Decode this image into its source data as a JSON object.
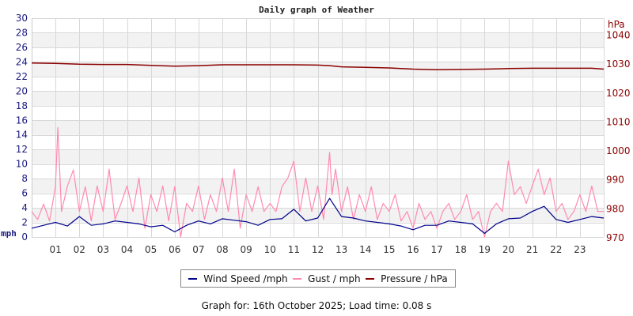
{
  "chart_data": {
    "type": "line",
    "title": "Daily graph of Weather",
    "xlabel": "",
    "ylabel_left": "mph",
    "ylabel_right": "hPa",
    "x_ticks": [
      "01",
      "02",
      "03",
      "04",
      "05",
      "06",
      "07",
      "08",
      "09",
      "10",
      "11",
      "12",
      "13",
      "14",
      "15",
      "16",
      "17",
      "18",
      "19",
      "20",
      "21",
      "22",
      "23"
    ],
    "xlim_hours": [
      0,
      24
    ],
    "ylim_left": [
      0,
      30
    ],
    "y_ticks_left": [
      0,
      2,
      4,
      6,
      8,
      10,
      12,
      14,
      16,
      18,
      20,
      22,
      24,
      26,
      28,
      30
    ],
    "ylim_right": [
      970,
      1045.6
    ],
    "y_ticks_right": [
      970,
      980,
      990,
      1000,
      1010,
      1020,
      1030,
      1040
    ],
    "grid": true,
    "legend_position": "bottom",
    "series": [
      {
        "name": "Wind Speed /mph",
        "color": "#00008b",
        "axis": "left",
        "x": [
          0,
          0.5,
          1,
          1.5,
          2,
          2.5,
          3,
          3.5,
          4,
          4.5,
          5,
          5.5,
          6,
          6.5,
          7,
          7.5,
          8,
          8.5,
          9,
          9.5,
          10,
          10.5,
          11,
          11.5,
          12,
          12.5,
          13,
          13.5,
          14,
          14.5,
          15,
          15.5,
          16,
          16.5,
          17,
          17.5,
          18,
          18.5,
          19,
          19.5,
          20,
          20.5,
          21,
          21.5,
          22,
          22.5,
          23,
          23.5,
          24
        ],
        "values": [
          1.2,
          1.6,
          2.0,
          1.5,
          2.8,
          1.6,
          1.8,
          2.2,
          2.0,
          1.8,
          1.4,
          1.6,
          0.7,
          1.6,
          2.2,
          1.8,
          2.5,
          2.3,
          2.1,
          1.6,
          2.4,
          2.5,
          3.8,
          2.2,
          2.6,
          5.3,
          2.8,
          2.6,
          2.2,
          2.0,
          1.8,
          1.5,
          1.0,
          1.6,
          1.6,
          2.2,
          2.0,
          1.8,
          0.5,
          1.8,
          2.5,
          2.6,
          3.5,
          4.2,
          2.4,
          2.0,
          2.4,
          2.8,
          2.6
        ]
      },
      {
        "name": "Gust / mph",
        "color": "#ff8aaf",
        "axis": "left",
        "x": [
          0,
          0.25,
          0.5,
          0.75,
          1,
          1.1,
          1.25,
          1.5,
          1.75,
          2,
          2.25,
          2.5,
          2.75,
          3,
          3.25,
          3.5,
          3.75,
          4,
          4.25,
          4.5,
          4.75,
          5,
          5.25,
          5.5,
          5.75,
          6,
          6.25,
          6.5,
          6.75,
          7,
          7.25,
          7.5,
          7.75,
          8,
          8.25,
          8.5,
          8.75,
          9,
          9.25,
          9.5,
          9.75,
          10,
          10.25,
          10.5,
          10.75,
          11,
          11.25,
          11.5,
          11.75,
          12,
          12.25,
          12.5,
          12.6,
          12.75,
          13,
          13.25,
          13.5,
          13.75,
          14,
          14.25,
          14.5,
          14.75,
          15,
          15.25,
          15.5,
          15.75,
          16,
          16.25,
          16.5,
          16.75,
          17,
          17.25,
          17.5,
          17.75,
          18,
          18.25,
          18.5,
          18.75,
          19,
          19.25,
          19.5,
          19.75,
          20,
          20.25,
          20.5,
          20.75,
          21,
          21.25,
          21.5,
          21.75,
          22,
          22.25,
          22.5,
          22.75,
          23,
          23.25,
          23.5,
          23.75,
          24
        ],
        "values": [
          3.5,
          2.4,
          4.5,
          2.2,
          6.9,
          15.0,
          3.5,
          7.0,
          9.2,
          3.5,
          6.9,
          2.2,
          7.0,
          3.5,
          9.3,
          2.4,
          4.6,
          7.0,
          3.5,
          8.1,
          1.2,
          5.8,
          3.5,
          7.0,
          2.2,
          6.9,
          0.0,
          4.6,
          3.5,
          7.0,
          2.4,
          5.8,
          3.5,
          8.1,
          3.5,
          9.3,
          1.2,
          5.8,
          3.5,
          6.9,
          3.5,
          4.6,
          3.5,
          6.9,
          8.1,
          10.4,
          3.5,
          8.1,
          3.5,
          7.0,
          2.4,
          11.6,
          5.8,
          9.3,
          3.5,
          6.9,
          2.4,
          5.8,
          3.5,
          6.9,
          2.4,
          4.6,
          3.5,
          5.8,
          2.2,
          3.5,
          1.2,
          4.6,
          2.4,
          3.5,
          1.2,
          3.5,
          4.6,
          2.4,
          3.5,
          5.8,
          2.4,
          3.5,
          0.0,
          3.5,
          4.6,
          3.5,
          10.4,
          5.8,
          6.9,
          4.6,
          7.0,
          9.3,
          5.8,
          8.1,
          3.5,
          4.6,
          2.4,
          3.5,
          5.8,
          3.5,
          7.0,
          3.5,
          3.5
        ]
      },
      {
        "name": "Pressure / hPa",
        "color": "#8b0000",
        "axis": "right",
        "x": [
          0,
          1,
          2,
          3,
          4,
          5,
          6,
          7,
          8,
          9,
          10,
          11,
          12,
          12.5,
          13,
          14,
          15,
          16,
          17,
          18,
          19,
          20,
          21,
          22,
          23,
          23.5,
          24
        ],
        "values": [
          1030.1,
          1030.0,
          1029.7,
          1029.6,
          1029.6,
          1029.3,
          1029.0,
          1029.2,
          1029.5,
          1029.5,
          1029.5,
          1029.5,
          1029.4,
          1029.2,
          1028.8,
          1028.6,
          1028.4,
          1028.0,
          1027.8,
          1027.9,
          1028.0,
          1028.2,
          1028.3,
          1028.3,
          1028.3,
          1028.3,
          1028.0
        ]
      }
    ]
  },
  "legend": {
    "items": [
      {
        "label": "Wind Speed /mph",
        "color": "#00008b"
      },
      {
        "label": "Gust / mph",
        "color": "#ff8aaf"
      },
      {
        "label": "Pressure / hPa",
        "color": "#8b0000"
      }
    ]
  },
  "footer": {
    "text": "Graph for: 16th October 2025; Load time: 0.08 s"
  }
}
